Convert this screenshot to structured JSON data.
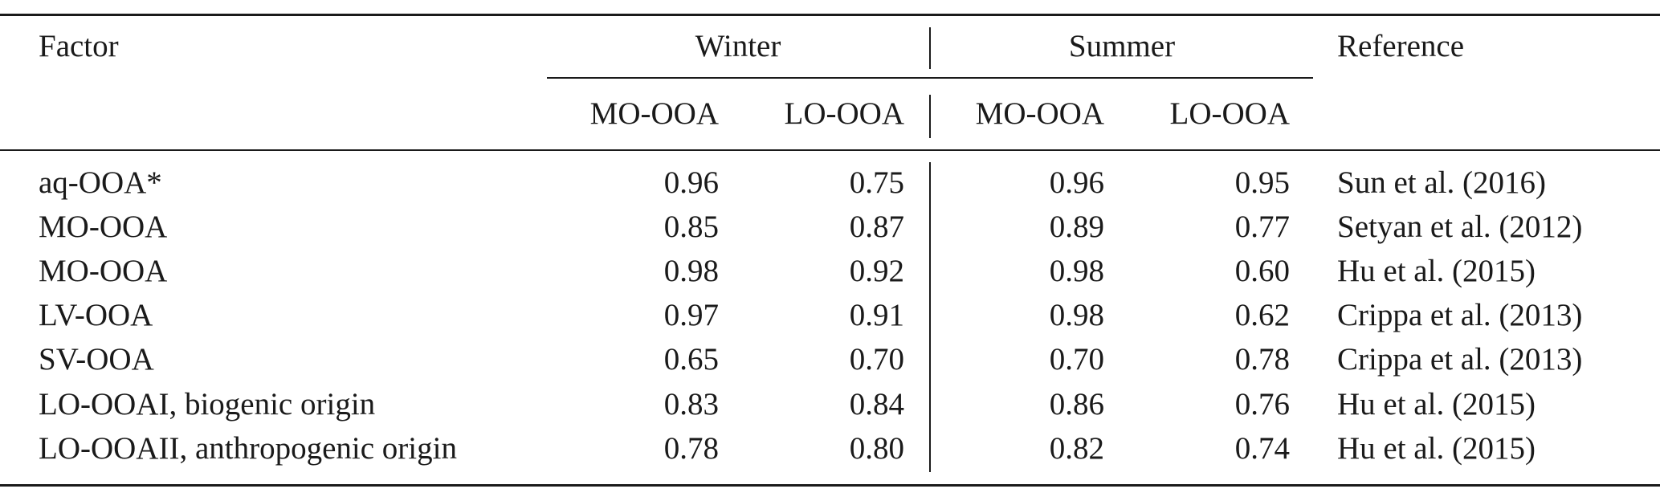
{
  "table": {
    "header": {
      "factor": "Factor",
      "winter": "Winter",
      "summer": "Summer",
      "reference": "Reference",
      "subcols": [
        "MO-OOA",
        "LO-OOA",
        "MO-OOA",
        "LO-OOA"
      ]
    },
    "rows": [
      {
        "factor": "aq-OOA*",
        "w_mo": "0.96",
        "w_lo": "0.75",
        "s_mo": "0.96",
        "s_lo": "0.95",
        "ref": "Sun et al. (2016)"
      },
      {
        "factor": "MO-OOA",
        "w_mo": "0.85",
        "w_lo": "0.87",
        "s_mo": "0.89",
        "s_lo": "0.77",
        "ref": "Setyan et al. (2012)"
      },
      {
        "factor": "MO-OOA",
        "w_mo": "0.98",
        "w_lo": "0.92",
        "s_mo": "0.98",
        "s_lo": "0.60",
        "ref": "Hu et al. (2015)"
      },
      {
        "factor": "LV-OOA",
        "w_mo": "0.97",
        "w_lo": "0.91",
        "s_mo": "0.98",
        "s_lo": "0.62",
        "ref": "Crippa et al. (2013)"
      },
      {
        "factor": "SV-OOA",
        "w_mo": "0.65",
        "w_lo": "0.70",
        "s_mo": "0.70",
        "s_lo": "0.78",
        "ref": "Crippa et al. (2013)"
      },
      {
        "factor": "LO-OOAI, biogenic origin",
        "w_mo": "0.83",
        "w_lo": "0.84",
        "s_mo": "0.86",
        "s_lo": "0.76",
        "ref": "Hu et al. (2015)"
      },
      {
        "factor": "LO-OOAII, anthropogenic origin",
        "w_mo": "0.78",
        "w_lo": "0.80",
        "s_mo": "0.82",
        "s_lo": "0.74",
        "ref": "Hu et al. (2015)"
      }
    ]
  }
}
